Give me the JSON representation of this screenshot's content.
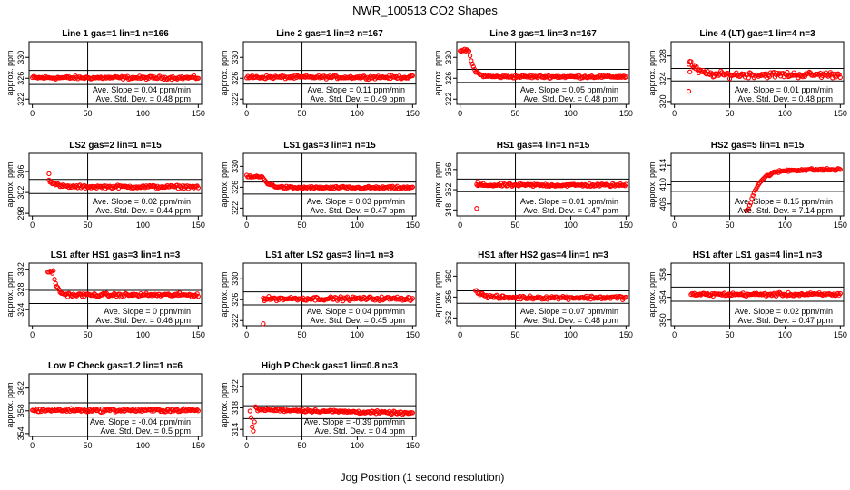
{
  "figure": {
    "title": "NWR_100513  CO2 Shapes",
    "xlabel": "Jog Position (1 second resolution)"
  },
  "chart_data": [
    {
      "type": "scatter",
      "title": "Line 1 gas=1 lin=1 n=166",
      "ylabel": "approx. ppm",
      "xlim": [
        -3,
        153
      ],
      "xticks": [
        0,
        50,
        100,
        150
      ],
      "ylim": [
        321,
        333
      ],
      "yticks": [
        322,
        326,
        330
      ],
      "hlines": [
        327.5,
        324.8
      ],
      "vline": 50,
      "slope_label": "Ave. Slope = 0.04 ppm/min",
      "std_label": "Ave. Std. Dev. = 0.48 ppm",
      "profile": {
        "start": 0,
        "end": 150,
        "base": 326.1,
        "noise": 0.25
      }
    },
    {
      "type": "scatter",
      "title": "Line 2 gas=1 lin=2 n=167",
      "ylabel": "approx. ppm",
      "xlim": [
        -3,
        153
      ],
      "xticks": [
        0,
        50,
        100,
        150
      ],
      "ylim": [
        321,
        333
      ],
      "yticks": [
        322,
        326,
        330
      ],
      "hlines": [
        327.5,
        324.9
      ],
      "vline": 50,
      "slope_label": "Ave. Slope = 0.11 ppm/min",
      "std_label": "Ave. Std. Dev. = 0.49 ppm",
      "profile": {
        "start": 0,
        "end": 150,
        "base": 326.2,
        "noise": 0.25
      }
    },
    {
      "type": "scatter",
      "title": "Line 3 gas=1 lin=3 n=167",
      "ylabel": "approx. ppm",
      "xlim": [
        -3,
        153
      ],
      "xticks": [
        0,
        50,
        100,
        150
      ],
      "ylim": [
        321,
        333
      ],
      "yticks": [
        322,
        326,
        330
      ],
      "hlines": [
        327.7,
        325.2
      ],
      "vline": 50,
      "slope_label": "Ave. Slope = 0.05 ppm/min",
      "std_label": "Ave. Std. Dev. = 0.48 ppm",
      "profile": {
        "start": 0,
        "end": 150,
        "base": 326.3,
        "noise": 0.22,
        "initial": 331.3,
        "decay": 4,
        "delay": 8
      }
    },
    {
      "type": "scatter",
      "title": "Line 4 (LT) gas=1 lin=4 n=3",
      "ylabel": "approx. ppm",
      "xlim": [
        -3,
        153
      ],
      "xticks": [
        0,
        50,
        100,
        150
      ],
      "ylim": [
        319.5,
        330.5
      ],
      "yticks": [
        320,
        324,
        328
      ],
      "hlines": [
        325.8,
        323.6
      ],
      "vline": 50,
      "slope_label": "Ave. Slope = 0.01 ppm/min",
      "std_label": "Ave. Std. Dev. = 0.48 ppm",
      "profile": {
        "start": 13,
        "end": 150,
        "base": 324.7,
        "noise": 0.45,
        "initial": 326.8,
        "decay": 6,
        "delay": 2
      },
      "outliers": [
        [
          13,
          321.8
        ],
        [
          14,
          325.2
        ]
      ]
    },
    {
      "type": "scatter",
      "title": "LS2 gas=2 lin=1 n=15",
      "ylabel": "approx. ppm",
      "xlim": [
        -3,
        153
      ],
      "xticks": [
        0,
        50,
        100,
        150
      ],
      "ylim": [
        297.5,
        309.5
      ],
      "yticks": [
        298,
        302,
        306
      ],
      "hlines": [
        304.5,
        301.8
      ],
      "vline": 50,
      "slope_label": "Ave. Slope = 0.02 ppm/min",
      "std_label": "Ave. Std. Dev. = 0.44 ppm",
      "profile": {
        "start": 15,
        "end": 150,
        "base": 303.1,
        "noise": 0.25,
        "initial": 304.5,
        "decay": 5
      },
      "outliers": [
        [
          15,
          305.6
        ]
      ]
    },
    {
      "type": "scatter",
      "title": "LS1 gas=3 lin=1 n=15",
      "ylabel": "approx. ppm",
      "xlim": [
        -3,
        153
      ],
      "xticks": [
        0,
        50,
        100,
        150
      ],
      "ylim": [
        320.5,
        332.5
      ],
      "yticks": [
        322,
        326,
        330
      ],
      "hlines": [
        327,
        324.7
      ],
      "vline": 50,
      "slope_label": "Ave. Slope = 0.03 ppm/min",
      "std_label": "Ave. Std. Dev. = 0.47 ppm",
      "profile": {
        "start": 0,
        "end": 150,
        "base": 325.9,
        "noise": 0.22,
        "initial": 328,
        "decay": 6,
        "delay": 14
      }
    },
    {
      "type": "scatter",
      "title": "HS1 gas=4 lin=1 n=15",
      "ylabel": "approx. ppm",
      "xlim": [
        -3,
        153
      ],
      "xticks": [
        0,
        50,
        100,
        150
      ],
      "ylim": [
        346.8,
        359.2
      ],
      "yticks": [
        348,
        352,
        356
      ],
      "hlines": [
        354.1,
        351.6
      ],
      "vline": 50,
      "slope_label": "Ave. Slope = 0.01 ppm/min",
      "std_label": "Ave. Std. Dev. = 0.47 ppm",
      "profile": {
        "start": 15,
        "end": 150,
        "base": 352.9,
        "noise": 0.25
      },
      "outliers": [
        [
          15,
          348.3
        ],
        [
          16,
          353.6
        ]
      ]
    },
    {
      "type": "scatter",
      "title": "HS2 gas=5 lin=1 n=15",
      "ylabel": "approx. ppm",
      "xlim": [
        -3,
        153
      ],
      "xticks": [
        0,
        50,
        100,
        150
      ],
      "ylim": [
        403.5,
        416.5
      ],
      "yticks": [
        406,
        410,
        414
      ],
      "hlines": [
        410.6,
        408.6
      ],
      "vline": 50,
      "slope_label": "Ave. Slope = 8.15 ppm/min",
      "std_label": "Ave. Std. Dev. = 7.14 ppm",
      "profile": {
        "start": 65,
        "end": 150,
        "base": 413.1,
        "noise": 0.22,
        "initial": 404.8,
        "decay": 9,
        "delay": 2
      }
    },
    {
      "type": "scatter",
      "title": "LS1 after HS1 gas=3 lin=1 n=3",
      "ylabel": "approx. ppm",
      "xlim": [
        -3,
        153
      ],
      "xticks": [
        0,
        50,
        100,
        150
      ],
      "ylim": [
        320.8,
        333.2
      ],
      "yticks": [
        324,
        328,
        332
      ],
      "hlines": [
        327.8,
        325.2
      ],
      "vline": 50,
      "slope_label": "Ave. Slope = 0 ppm/min",
      "std_label": "Ave. Std. Dev. = 0.46 ppm",
      "profile": {
        "start": 14,
        "end": 150,
        "base": 326.9,
        "noise": 0.28,
        "initial": 331.5,
        "decay": 3,
        "delay": 5
      }
    },
    {
      "type": "scatter",
      "title": "LS1 after LS2 gas=3 lin=1 n=3",
      "ylabel": "approx. ppm",
      "xlim": [
        -3,
        153
      ],
      "xticks": [
        0,
        50,
        100,
        150
      ],
      "ylim": [
        321,
        333
      ],
      "yticks": [
        322,
        326,
        330
      ],
      "hlines": [
        327.5,
        325
      ],
      "vline": 50,
      "slope_label": "Ave. Slope = 0.04 ppm/min",
      "std_label": "Ave. Std. Dev. = 0.45 ppm",
      "profile": {
        "start": 15,
        "end": 150,
        "base": 326.2,
        "noise": 0.3
      },
      "outliers": [
        [
          15,
          321.4
        ],
        [
          16,
          325.8
        ]
      ]
    },
    {
      "type": "scatter",
      "title": "HS1 after HS2 gas=4 lin=1 n=3",
      "ylabel": "approx. ppm",
      "xlim": [
        -3,
        153
      ],
      "xticks": [
        0,
        50,
        100,
        150
      ],
      "ylim": [
        350.5,
        362.5
      ],
      "yticks": [
        352,
        356,
        360
      ],
      "hlines": [
        357.2,
        354.8
      ],
      "vline": 50,
      "slope_label": "Ave. Slope = 0.07 ppm/min",
      "std_label": "Ave. Std. Dev. = 0.48 ppm",
      "profile": {
        "start": 14,
        "end": 150,
        "base": 355.9,
        "noise": 0.28,
        "initial": 357.4,
        "decay": 6
      }
    },
    {
      "type": "scatter",
      "title": "HS1 after LS1 gas=4 lin=1 n=3",
      "ylabel": "approx. ppm",
      "xlim": [
        -3,
        153
      ],
      "xticks": [
        0,
        50,
        100,
        150
      ],
      "ylim": [
        349,
        360
      ],
      "yticks": [
        350,
        354,
        358
      ],
      "hlines": [
        355.8,
        353.3
      ],
      "vline": 50,
      "slope_label": "Ave. Slope = 0.02 ppm/min",
      "std_label": "Ave. Std. Dev. = 0.47 ppm",
      "profile": {
        "start": 15,
        "end": 150,
        "base": 354.5,
        "noise": 0.25
      }
    },
    {
      "type": "scatter",
      "title": "Low P Check gas=1.2 lin=1 n=6",
      "ylabel": "approx. ppm",
      "xlim": [
        -3,
        153
      ],
      "xticks": [
        0,
        50,
        100,
        150
      ],
      "ylim": [
        353.5,
        364.5
      ],
      "yticks": [
        354,
        358,
        362
      ],
      "hlines": [
        359.4,
        356.9
      ],
      "vline": 50,
      "slope_label": "Ave. Slope = -0.04 ppm/min",
      "std_label": "Ave. Std. Dev. = 0.5 ppm",
      "profile": {
        "start": 0,
        "end": 150,
        "base": 358.1,
        "noise": 0.25
      }
    },
    {
      "type": "scatter",
      "title": "High P Check gas=1 lin=0.8 n=3",
      "ylabel": "approx. ppm",
      "xlim": [
        -3,
        153
      ],
      "xticks": [
        0,
        50,
        100,
        150
      ],
      "ylim": [
        312.7,
        324.3
      ],
      "yticks": [
        314,
        318,
        322
      ],
      "hlines": [
        318.4,
        316
      ],
      "vline": 50,
      "slope_label": "Ave. Slope = -0.39 ppm/min",
      "std_label": "Ave. Std. Dev. = 0.4 ppm",
      "profile": {
        "start": 9,
        "end": 150,
        "base": 317.7,
        "noise": 0.22,
        "trend": -0.005
      },
      "outliers": [
        [
          3,
          317.4
        ],
        [
          4,
          316.2
        ],
        [
          5,
          314.5
        ],
        [
          6,
          313.7
        ],
        [
          7,
          315.4
        ],
        [
          8,
          318.2
        ]
      ]
    }
  ]
}
